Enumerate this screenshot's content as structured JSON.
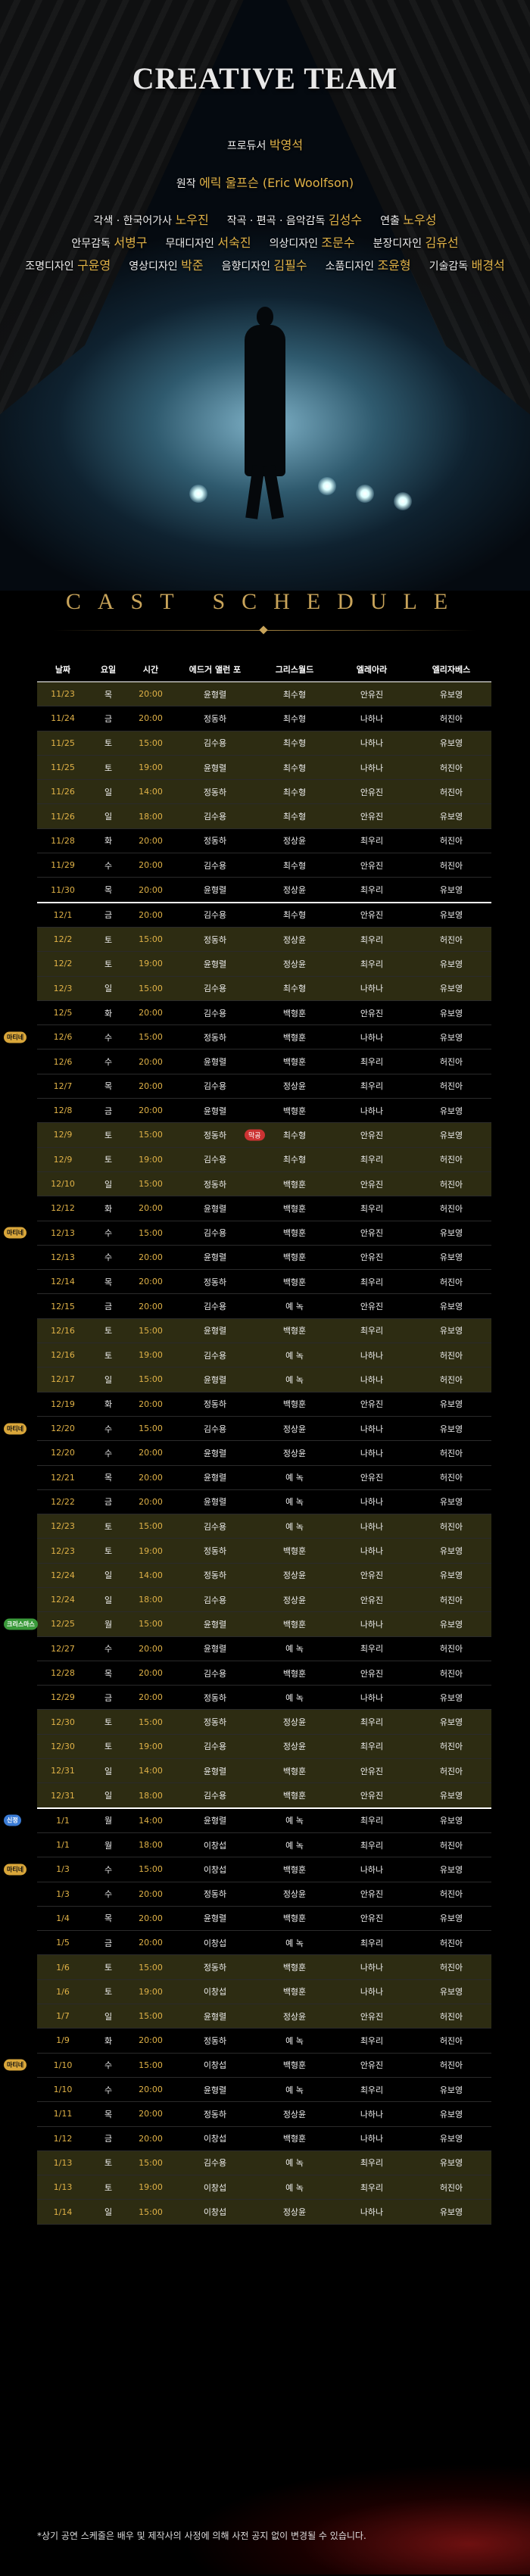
{
  "hero": {
    "title": "CREATIVE TEAM",
    "producer_role": "프로듀서",
    "producer_name": "박영석",
    "original_role": "원작",
    "original_name": "에릭 울프슨 (Eric Woolfson)",
    "row1": [
      {
        "role": "각색 · 한국어가사",
        "name": "노우진"
      },
      {
        "role": "작곡 · 편곡 · 음악감독",
        "name": "김성수"
      },
      {
        "role": "연출",
        "name": "노우성"
      }
    ],
    "row2": [
      {
        "role": "안무감독",
        "name": "서병구"
      },
      {
        "role": "무대디자인",
        "name": "서숙진"
      },
      {
        "role": "의상디자인",
        "name": "조문수"
      },
      {
        "role": "분장디자인",
        "name": "김유선"
      }
    ],
    "row3": [
      {
        "role": "조명디자인",
        "name": "구윤영"
      },
      {
        "role": "영상디자인",
        "name": "박준"
      },
      {
        "role": "음향디자인",
        "name": "김필수"
      },
      {
        "role": "소품디자인",
        "name": "조윤형"
      },
      {
        "role": "기술감독",
        "name": "배경석"
      }
    ]
  },
  "schedule": {
    "title": "CAST SCHEDULE",
    "headers": [
      "날짜",
      "요일",
      "시간",
      "에드거 앨런 포",
      "그리스월드",
      "엘레아라",
      "엘리자베스"
    ],
    "rows": [
      {
        "date": "11/23",
        "day": "목",
        "time": "20:00",
        "c1": "윤형렬",
        "c2": "최수형",
        "c3": "안유진",
        "c4": "유보영",
        "shade": true
      },
      {
        "date": "11/24",
        "day": "금",
        "time": "20:00",
        "c1": "정동하",
        "c2": "최수형",
        "c3": "나하나",
        "c4": "허진아",
        "shade": false
      },
      {
        "date": "11/25",
        "day": "토",
        "time": "15:00",
        "c1": "김수용",
        "c2": "최수형",
        "c3": "나하나",
        "c4": "유보영",
        "shade": true
      },
      {
        "date": "11/25",
        "day": "토",
        "time": "19:00",
        "c1": "윤형렬",
        "c2": "최수형",
        "c3": "나하나",
        "c4": "허진아",
        "shade": true
      },
      {
        "date": "11/26",
        "day": "일",
        "time": "14:00",
        "c1": "정동하",
        "c2": "최수형",
        "c3": "안유진",
        "c4": "허진아",
        "shade": true
      },
      {
        "date": "11/26",
        "day": "일",
        "time": "18:00",
        "c1": "김수용",
        "c2": "최수형",
        "c3": "안유진",
        "c4": "유보영",
        "shade": true
      },
      {
        "date": "11/28",
        "day": "화",
        "time": "20:00",
        "c1": "정동하",
        "c2": "정상윤",
        "c3": "최우리",
        "c4": "허진아",
        "shade": false
      },
      {
        "date": "11/29",
        "day": "수",
        "time": "20:00",
        "c1": "김수용",
        "c2": "최수형",
        "c3": "안유진",
        "c4": "허진아",
        "shade": false
      },
      {
        "date": "11/30",
        "day": "목",
        "time": "20:00",
        "c1": "윤형렬",
        "c2": "정상윤",
        "c3": "최우리",
        "c4": "유보영",
        "shade": false
      },
      {
        "date": "12/1",
        "day": "금",
        "time": "20:00",
        "c1": "김수용",
        "c2": "최수형",
        "c3": "안유진",
        "c4": "유보영",
        "shade": false,
        "monthstart": true
      },
      {
        "date": "12/2",
        "day": "토",
        "time": "15:00",
        "c1": "정동하",
        "c2": "정상윤",
        "c3": "최우리",
        "c4": "허진아",
        "shade": true
      },
      {
        "date": "12/2",
        "day": "토",
        "time": "19:00",
        "c1": "윤형렬",
        "c2": "정상윤",
        "c3": "최우리",
        "c4": "유보영",
        "shade": true
      },
      {
        "date": "12/3",
        "day": "일",
        "time": "15:00",
        "c1": "김수용",
        "c2": "최수형",
        "c3": "나하나",
        "c4": "유보영",
        "shade": true
      },
      {
        "date": "12/5",
        "day": "화",
        "time": "20:00",
        "c1": "김수용",
        "c2": "백형훈",
        "c3": "안유진",
        "c4": "유보영",
        "shade": false
      },
      {
        "date": "12/6",
        "day": "수",
        "time": "15:00",
        "c1": "정동하",
        "c2": "백형훈",
        "c3": "나하나",
        "c4": "유보영",
        "shade": false,
        "tag": "마티네"
      },
      {
        "date": "12/6",
        "day": "수",
        "time": "20:00",
        "c1": "윤형렬",
        "c2": "백형훈",
        "c3": "최우리",
        "c4": "허진아",
        "shade": false
      },
      {
        "date": "12/7",
        "day": "목",
        "time": "20:00",
        "c1": "김수용",
        "c2": "정상윤",
        "c3": "최우리",
        "c4": "허진아",
        "shade": false
      },
      {
        "date": "12/8",
        "day": "금",
        "time": "20:00",
        "c1": "윤형렬",
        "c2": "백형훈",
        "c3": "나하나",
        "c4": "유보영",
        "shade": false
      },
      {
        "date": "12/9",
        "day": "토",
        "time": "15:00",
        "c1": "정동하",
        "c2": "최수형",
        "c3": "안유진",
        "c4": "유보영",
        "shade": true,
        "ctag": "막공"
      },
      {
        "date": "12/9",
        "day": "토",
        "time": "19:00",
        "c1": "김수용",
        "c2": "최수형",
        "c3": "최우리",
        "c4": "허진아",
        "shade": true
      },
      {
        "date": "12/10",
        "day": "일",
        "time": "15:00",
        "c1": "정동하",
        "c2": "백형훈",
        "c3": "안유진",
        "c4": "허진아",
        "shade": true
      },
      {
        "date": "12/12",
        "day": "화",
        "time": "20:00",
        "c1": "윤형렬",
        "c2": "백형훈",
        "c3": "최우리",
        "c4": "허진아",
        "shade": false
      },
      {
        "date": "12/13",
        "day": "수",
        "time": "15:00",
        "c1": "김수용",
        "c2": "백형훈",
        "c3": "안유진",
        "c4": "유보영",
        "shade": false,
        "tag": "마티네"
      },
      {
        "date": "12/13",
        "day": "수",
        "time": "20:00",
        "c1": "윤형렬",
        "c2": "백형훈",
        "c3": "안유진",
        "c4": "유보영",
        "shade": false
      },
      {
        "date": "12/14",
        "day": "목",
        "time": "20:00",
        "c1": "정동하",
        "c2": "백형훈",
        "c3": "최우리",
        "c4": "허진아",
        "shade": false
      },
      {
        "date": "12/15",
        "day": "금",
        "time": "20:00",
        "c1": "김수용",
        "c2": "예 녹",
        "c3": "안유진",
        "c4": "유보영",
        "shade": false
      },
      {
        "date": "12/16",
        "day": "토",
        "time": "15:00",
        "c1": "윤형렬",
        "c2": "백형훈",
        "c3": "최우리",
        "c4": "유보영",
        "shade": true
      },
      {
        "date": "12/16",
        "day": "토",
        "time": "19:00",
        "c1": "김수용",
        "c2": "예 녹",
        "c3": "나하나",
        "c4": "허진아",
        "shade": true
      },
      {
        "date": "12/17",
        "day": "일",
        "time": "15:00",
        "c1": "윤형렬",
        "c2": "예 녹",
        "c3": "나하나",
        "c4": "허진아",
        "shade": true
      },
      {
        "date": "12/19",
        "day": "화",
        "time": "20:00",
        "c1": "정동하",
        "c2": "백형훈",
        "c3": "안유진",
        "c4": "유보영",
        "shade": false
      },
      {
        "date": "12/20",
        "day": "수",
        "time": "15:00",
        "c1": "김수용",
        "c2": "정상윤",
        "c3": "나하나",
        "c4": "유보영",
        "shade": false,
        "tag": "마티네"
      },
      {
        "date": "12/20",
        "day": "수",
        "time": "20:00",
        "c1": "윤형렬",
        "c2": "정상윤",
        "c3": "나하나",
        "c4": "허진아",
        "shade": false
      },
      {
        "date": "12/21",
        "day": "목",
        "time": "20:00",
        "c1": "윤형렬",
        "c2": "예 녹",
        "c3": "안유진",
        "c4": "허진아",
        "shade": false
      },
      {
        "date": "12/22",
        "day": "금",
        "time": "20:00",
        "c1": "윤형렬",
        "c2": "예 녹",
        "c3": "나하나",
        "c4": "유보영",
        "shade": false
      },
      {
        "date": "12/23",
        "day": "토",
        "time": "15:00",
        "c1": "김수용",
        "c2": "예 녹",
        "c3": "나하나",
        "c4": "허진아",
        "shade": true
      },
      {
        "date": "12/23",
        "day": "토",
        "time": "19:00",
        "c1": "정동하",
        "c2": "백형훈",
        "c3": "나하나",
        "c4": "유보영",
        "shade": true
      },
      {
        "date": "12/24",
        "day": "일",
        "time": "14:00",
        "c1": "정동하",
        "c2": "정상윤",
        "c3": "안유진",
        "c4": "유보영",
        "shade": true
      },
      {
        "date": "12/24",
        "day": "일",
        "time": "18:00",
        "c1": "김수용",
        "c2": "정상윤",
        "c3": "안유진",
        "c4": "허진아",
        "shade": true
      },
      {
        "date": "12/25",
        "day": "월",
        "time": "15:00",
        "c1": "윤형렬",
        "c2": "백형훈",
        "c3": "나하나",
        "c4": "유보영",
        "shade": true,
        "tag": "크리스마스"
      },
      {
        "date": "12/27",
        "day": "수",
        "time": "20:00",
        "c1": "윤형렬",
        "c2": "예 녹",
        "c3": "최우리",
        "c4": "허진아",
        "shade": false
      },
      {
        "date": "12/28",
        "day": "목",
        "time": "20:00",
        "c1": "김수용",
        "c2": "백형훈",
        "c3": "안유진",
        "c4": "허진아",
        "shade": false
      },
      {
        "date": "12/29",
        "day": "금",
        "time": "20:00",
        "c1": "정동하",
        "c2": "예 녹",
        "c3": "나하나",
        "c4": "유보영",
        "shade": false
      },
      {
        "date": "12/30",
        "day": "토",
        "time": "15:00",
        "c1": "정동하",
        "c2": "정상윤",
        "c3": "최우리",
        "c4": "유보영",
        "shade": true
      },
      {
        "date": "12/30",
        "day": "토",
        "time": "19:00",
        "c1": "김수용",
        "c2": "정상윤",
        "c3": "최우리",
        "c4": "허진아",
        "shade": true
      },
      {
        "date": "12/31",
        "day": "일",
        "time": "14:00",
        "c1": "윤형렬",
        "c2": "백형훈",
        "c3": "안유진",
        "c4": "허진아",
        "shade": true
      },
      {
        "date": "12/31",
        "day": "일",
        "time": "18:00",
        "c1": "김수용",
        "c2": "백형훈",
        "c3": "안유진",
        "c4": "유보영",
        "shade": true
      },
      {
        "date": "1/1",
        "day": "월",
        "time": "14:00",
        "c1": "윤형렬",
        "c2": "예 녹",
        "c3": "최우리",
        "c4": "유보영",
        "shade": false,
        "monthstart": true,
        "tag": "신정"
      },
      {
        "date": "1/1",
        "day": "월",
        "time": "18:00",
        "c1": "이창섭",
        "c2": "예 녹",
        "c3": "최우리",
        "c4": "허진아",
        "shade": false
      },
      {
        "date": "1/3",
        "day": "수",
        "time": "15:00",
        "c1": "이창섭",
        "c2": "백형훈",
        "c3": "나하나",
        "c4": "유보영",
        "shade": false,
        "tag": "마티네"
      },
      {
        "date": "1/3",
        "day": "수",
        "time": "20:00",
        "c1": "정동하",
        "c2": "정상윤",
        "c3": "안유진",
        "c4": "허진아",
        "shade": false
      },
      {
        "date": "1/4",
        "day": "목",
        "time": "20:00",
        "c1": "윤형렬",
        "c2": "백형훈",
        "c3": "안유진",
        "c4": "유보영",
        "shade": false
      },
      {
        "date": "1/5",
        "day": "금",
        "time": "20:00",
        "c1": "이창섭",
        "c2": "예 녹",
        "c3": "최우리",
        "c4": "허진아",
        "shade": false
      },
      {
        "date": "1/6",
        "day": "토",
        "time": "15:00",
        "c1": "정동하",
        "c2": "백형훈",
        "c3": "나하나",
        "c4": "허진아",
        "shade": true
      },
      {
        "date": "1/6",
        "day": "토",
        "time": "19:00",
        "c1": "이창섭",
        "c2": "백형훈",
        "c3": "나하나",
        "c4": "유보영",
        "shade": true
      },
      {
        "date": "1/7",
        "day": "일",
        "time": "15:00",
        "c1": "윤형렬",
        "c2": "정상윤",
        "c3": "안유진",
        "c4": "허진아",
        "shade": true
      },
      {
        "date": "1/9",
        "day": "화",
        "time": "20:00",
        "c1": "정동하",
        "c2": "예 녹",
        "c3": "최우리",
        "c4": "허진아",
        "shade": false
      },
      {
        "date": "1/10",
        "day": "수",
        "time": "15:00",
        "c1": "이창섭",
        "c2": "백형훈",
        "c3": "안유진",
        "c4": "허진아",
        "shade": false,
        "tag": "마티네"
      },
      {
        "date": "1/10",
        "day": "수",
        "time": "20:00",
        "c1": "윤형렬",
        "c2": "예 녹",
        "c3": "최우리",
        "c4": "유보영",
        "shade": false
      },
      {
        "date": "1/11",
        "day": "목",
        "time": "20:00",
        "c1": "정동하",
        "c2": "정상윤",
        "c3": "나하나",
        "c4": "유보영",
        "shade": false
      },
      {
        "date": "1/12",
        "day": "금",
        "time": "20:00",
        "c1": "이창섭",
        "c2": "백형훈",
        "c3": "나하나",
        "c4": "유보영",
        "shade": false
      },
      {
        "date": "1/13",
        "day": "토",
        "time": "15:00",
        "c1": "김수용",
        "c2": "예 녹",
        "c3": "최우리",
        "c4": "유보영",
        "shade": true
      },
      {
        "date": "1/13",
        "day": "토",
        "time": "19:00",
        "c1": "이창섭",
        "c2": "예 녹",
        "c3": "최우리",
        "c4": "허진아",
        "shade": true
      },
      {
        "date": "1/14",
        "day": "일",
        "time": "15:00",
        "c1": "이창섭",
        "c2": "정상윤",
        "c3": "나하나",
        "c4": "유보영",
        "shade": true
      }
    ]
  },
  "footnote": "*상기 공연 스케줄은 배우 및 제작사의 사정에 의해 사전 공지 없이 변경될 수 있습니다.",
  "colors": {
    "gold": "#e0b247",
    "shade": "#2d2c12",
    "tag_gold": "#d9a63a",
    "tag_blue": "#3a7bd5",
    "tag_green": "#3a9a3a"
  }
}
